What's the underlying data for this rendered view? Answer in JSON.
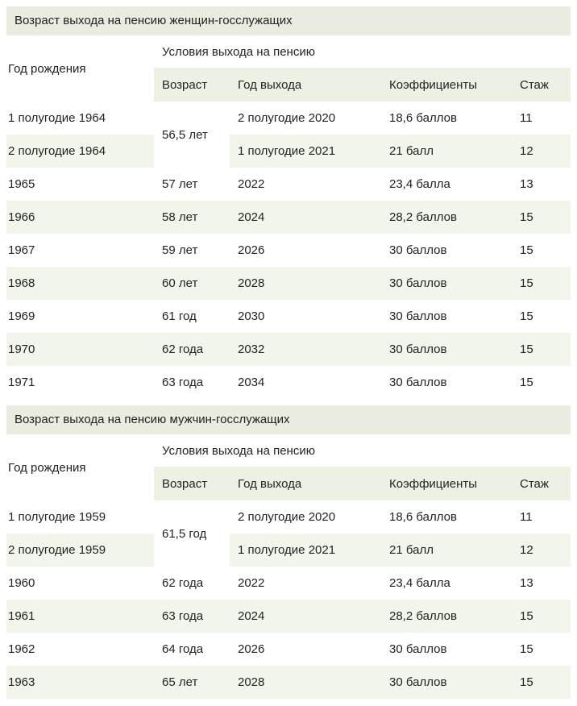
{
  "theme": {
    "title_bar_bg": "#e9ecdf",
    "subheader_bg": "#edf1e3",
    "row_stripe_bg": "#f2f5e9",
    "text_color": "#222222",
    "page_bg": "#ffffff"
  },
  "tables": [
    {
      "title": "Возраст выхода на пенсию женщин-госслужащих",
      "col1_header": "Год рождения",
      "group_header": "Условия выхода на пенсию",
      "sub_headers": [
        "Возраст",
        "Год выхода",
        "Коэффициенты",
        "Стаж"
      ],
      "rows": [
        {
          "birth": "1 полугодие 1964",
          "age": "56,5 лет",
          "age_rowspan": 2,
          "exit": "2 полугодие 2020",
          "coeff": "18,6 баллов",
          "service": "11"
        },
        {
          "birth": "2 полугодие 1964",
          "exit": "1 полугодие 2021",
          "coeff": "21 балл",
          "service": "12"
        },
        {
          "birth": "1965",
          "age": "57 лет",
          "exit": "2022",
          "coeff": "23,4 балла",
          "service": "13"
        },
        {
          "birth": "1966",
          "age": "58 лет",
          "exit": "2024",
          "coeff": "28,2 баллов",
          "service": "15"
        },
        {
          "birth": "1967",
          "age": "59 лет",
          "exit": "2026",
          "coeff": "30 баллов",
          "service": "15"
        },
        {
          "birth": "1968",
          "age": "60 лет",
          "exit": "2028",
          "coeff": "30 баллов",
          "service": "15"
        },
        {
          "birth": "1969",
          "age": "61 год",
          "exit": "2030",
          "coeff": "30 баллов",
          "service": "15"
        },
        {
          "birth": "1970",
          "age": "62 года",
          "exit": "2032",
          "coeff": "30 баллов",
          "service": "15"
        },
        {
          "birth": "1971",
          "age": "63 года",
          "exit": "2034",
          "coeff": "30 баллов",
          "service": "15"
        }
      ]
    },
    {
      "title": "Возраст выхода на пенсию мужчин-госслужащих",
      "col1_header": "Год рождения",
      "group_header": "Условия выхода на пенсию",
      "sub_headers": [
        "Возраст",
        "Год выхода",
        "Коэффициенты",
        "Стаж"
      ],
      "rows": [
        {
          "birth": "1 полугодие 1959",
          "age": "61,5 год",
          "age_rowspan": 2,
          "exit": "2 полугодие 2020",
          "coeff": "18,6 баллов",
          "service": "11"
        },
        {
          "birth": "2 полугодие 1959",
          "exit": "1 полугодие 2021",
          "coeff": "21 балл",
          "service": "12"
        },
        {
          "birth": "1960",
          "age": "62 года",
          "exit": "2022",
          "coeff": "23,4 балла",
          "service": "13"
        },
        {
          "birth": "1961",
          "age": "63 года",
          "exit": "2024",
          "coeff": "28,2 баллов",
          "service": "15"
        },
        {
          "birth": "1962",
          "age": "64 года",
          "exit": "2026",
          "coeff": "30 баллов",
          "service": "15"
        },
        {
          "birth": "1963",
          "age": "65 лет",
          "exit": "2028",
          "coeff": "30 баллов",
          "service": "15"
        }
      ]
    }
  ]
}
